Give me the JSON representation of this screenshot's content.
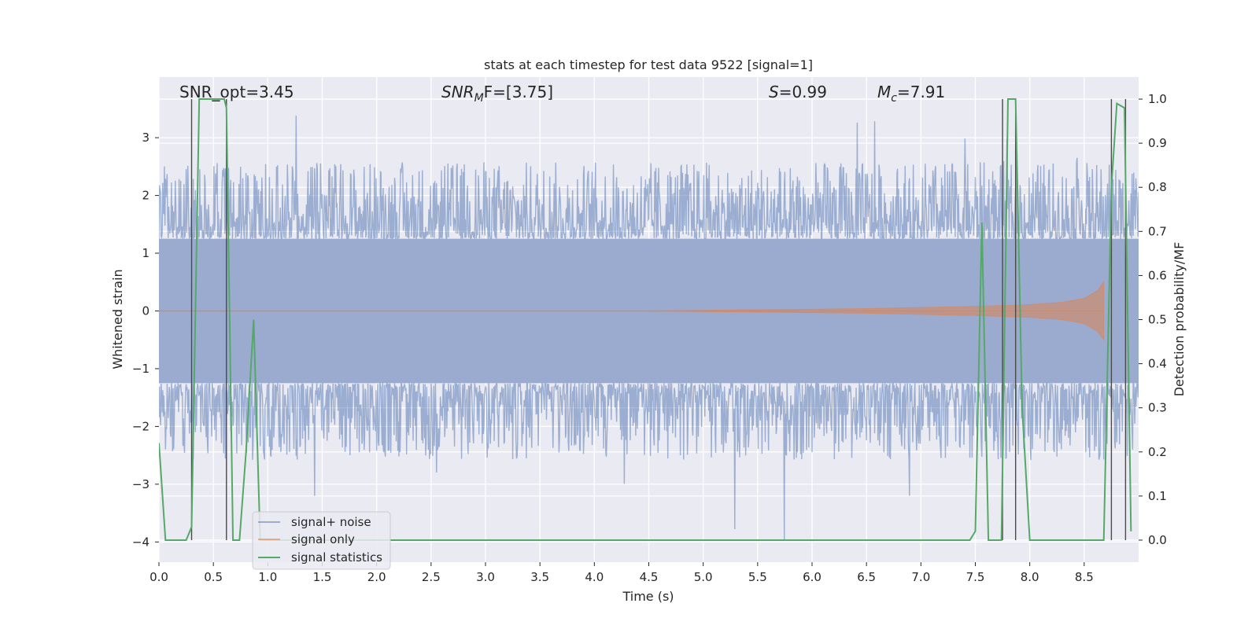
{
  "chart_data": {
    "type": "line",
    "title": "stats at each timestep for test data 9522 [signal=1]",
    "xlabel": "Time (s)",
    "ylabel": "Whitened strain",
    "y2label": "Detection probability/MF",
    "xlim": [
      0.0,
      9.0
    ],
    "ylim": [
      -4.35,
      4.05
    ],
    "y2lim": [
      -0.05,
      1.05
    ],
    "grid": true,
    "legend_position": "lower-left",
    "x_ticks": [
      "0.0",
      "0.5",
      "1.0",
      "1.5",
      "2.0",
      "2.5",
      "3.0",
      "3.5",
      "4.0",
      "4.5",
      "5.0",
      "5.5",
      "6.0",
      "6.5",
      "7.0",
      "7.5",
      "8.0",
      "8.5"
    ],
    "y_ticks": [
      "−4",
      "−3",
      "−2",
      "−1",
      "0",
      "1",
      "2",
      "3"
    ],
    "y2_ticks": [
      "0.0",
      "0.1",
      "0.2",
      "0.3",
      "0.4",
      "0.5",
      "0.6",
      "0.7",
      "0.8",
      "0.9",
      "1.0"
    ],
    "annotations": {
      "snr_opt": "SNR_opt=3.45",
      "snr_mf_main": "SNR",
      "snr_mf_sub": "M",
      "snr_mf_rest": "F=[3.75]",
      "s_main": "S",
      "s_rest": "=0.99",
      "mc_main": "M",
      "mc_sub": "c",
      "mc_rest": "=7.91"
    },
    "noise_envelope": {
      "core_amplitude": 1.25,
      "typical_peak": 2.0,
      "max_value": 3.6,
      "min_value": -4.0
    },
    "signal_only": {
      "x": [
        0.0,
        4.5,
        5.5,
        6.5,
        7.0,
        7.5,
        8.0,
        8.3,
        8.5,
        8.62,
        8.68
      ],
      "amplitude": [
        0.0,
        0.0,
        0.02,
        0.04,
        0.06,
        0.08,
        0.11,
        0.15,
        0.22,
        0.35,
        0.5
      ]
    },
    "vertical_markers": [
      0.3,
      0.62,
      7.75,
      7.87,
      8.75,
      8.88
    ],
    "series": [
      {
        "name": "signal+ noise",
        "color": "#4c72b0"
      },
      {
        "name": "signal only",
        "color": "#dd8452"
      },
      {
        "name": "signal statistics",
        "color": "#55a868",
        "axis": "right",
        "x": [
          0.0,
          0.06,
          0.12,
          0.18,
          0.25,
          0.3,
          0.37,
          0.42,
          0.5,
          0.6,
          0.62,
          0.68,
          0.74,
          0.8,
          0.87,
          0.93,
          1.0,
          1.5,
          2.0,
          3.0,
          4.0,
          5.0,
          6.0,
          7.0,
          7.45,
          7.5,
          7.56,
          7.62,
          7.68,
          7.74,
          7.8,
          7.87,
          7.93,
          8.0,
          8.5,
          8.68,
          8.75,
          8.8,
          8.87,
          8.93
        ],
        "values": [
          0.22,
          0.0,
          0.0,
          0.0,
          0.0,
          0.03,
          1.0,
          1.0,
          1.0,
          1.0,
          0.98,
          0.0,
          0.0,
          0.2,
          0.5,
          0.0,
          0.0,
          0.0,
          0.0,
          0.0,
          0.0,
          0.0,
          0.0,
          0.0,
          0.0,
          0.02,
          0.72,
          0.0,
          0.0,
          0.0,
          1.0,
          1.0,
          0.3,
          0.0,
          0.0,
          0.0,
          0.8,
          0.99,
          0.98,
          0.02
        ]
      }
    ]
  }
}
